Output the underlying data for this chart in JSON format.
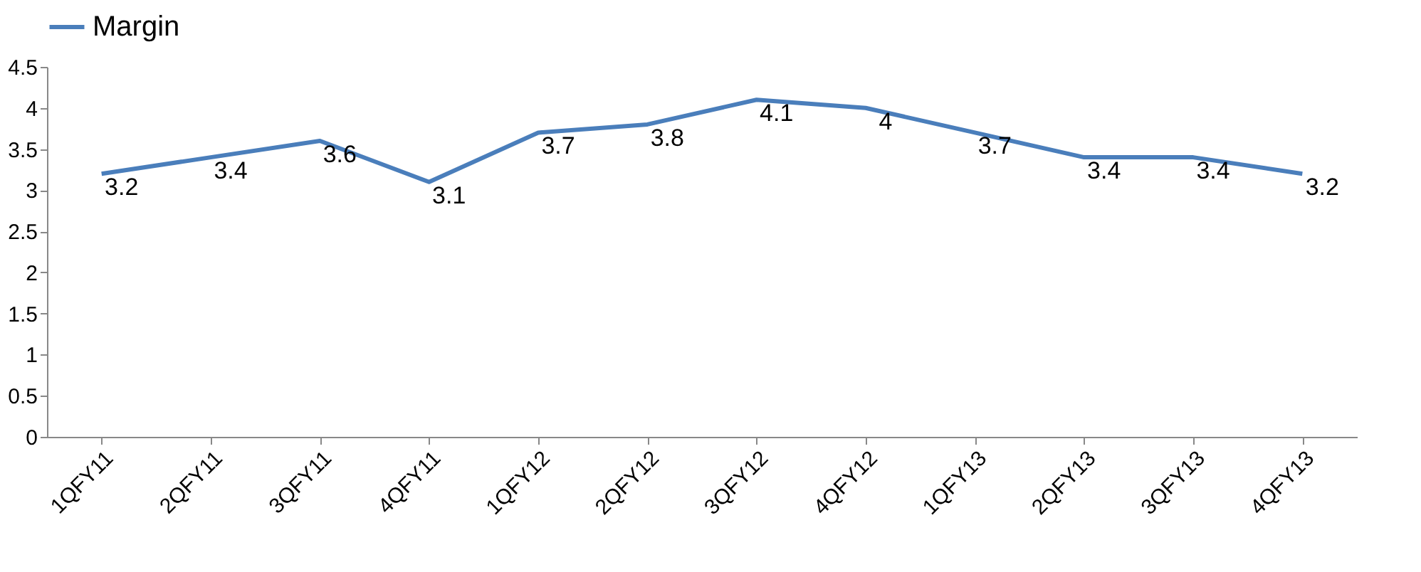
{
  "chart_data": {
    "type": "line",
    "categories": [
      "1QFY11",
      "2QFY11",
      "3QFY11",
      "4QFY11",
      "1QFY12",
      "2QFY12",
      "3QFY12",
      "4QFY12",
      "1QFY13",
      "2QFY13",
      "3QFY13",
      "4QFY13"
    ],
    "series": [
      {
        "name": "Margin",
        "color": "#4a7ebb",
        "values": [
          3.2,
          3.4,
          3.6,
          3.1,
          3.7,
          3.8,
          4.1,
          4,
          3.7,
          3.4,
          3.4,
          3.2
        ]
      }
    ],
    "ylim": [
      0,
      4.5
    ],
    "yticks": [
      0,
      0.5,
      1,
      1.5,
      2,
      2.5,
      3,
      3.5,
      4,
      4.5
    ],
    "grid": false,
    "legend": "top",
    "data_labels": true,
    "marker": "none",
    "line_style": "solid"
  }
}
